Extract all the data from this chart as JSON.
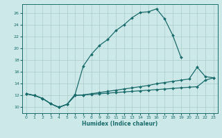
{
  "xlabel": "Humidex (Indice chaleur)",
  "bg_color": "#cce8e8",
  "grid_color": "#aacccc",
  "line_color": "#1a6b6b",
  "xlim": [
    -0.5,
    23.5
  ],
  "ylim": [
    9.0,
    27.5
  ],
  "xticks": [
    0,
    1,
    2,
    3,
    4,
    5,
    6,
    7,
    8,
    9,
    10,
    11,
    12,
    13,
    14,
    15,
    16,
    17,
    18,
    19,
    20,
    21,
    22,
    23
  ],
  "yticks": [
    10,
    12,
    14,
    16,
    18,
    20,
    22,
    24,
    26
  ],
  "series": [
    {
      "x": [
        0,
        1,
        2,
        3,
        4,
        5,
        6,
        7,
        8,
        9,
        10,
        11,
        12,
        13,
        14,
        15,
        16,
        17,
        18,
        19
      ],
      "y": [
        12.3,
        12.0,
        11.5,
        10.6,
        10.0,
        10.5,
        12.2,
        17.0,
        19.0,
        20.5,
        21.5,
        23.0,
        24.0,
        25.2,
        26.1,
        26.2,
        26.7,
        25.0,
        22.2,
        18.5
      ]
    },
    {
      "x": [
        0,
        1,
        2,
        3,
        4,
        5,
        6,
        7,
        8,
        9,
        10,
        11,
        12,
        13,
        14,
        15,
        16,
        17,
        18,
        19,
        20,
        21,
        22,
        23
      ],
      "y": [
        12.3,
        12.0,
        11.5,
        10.6,
        10.0,
        10.5,
        12.0,
        12.1,
        12.3,
        12.5,
        12.7,
        12.9,
        13.1,
        13.3,
        13.5,
        13.7,
        14.0,
        14.2,
        14.4,
        14.6,
        14.8,
        16.8,
        15.2,
        15.0
      ]
    },
    {
      "x": [
        0,
        1,
        2,
        3,
        4,
        5,
        6,
        7,
        8,
        9,
        10,
        11,
        12,
        13,
        14,
        15,
        16,
        17,
        18,
        19,
        20,
        21,
        22,
        23
      ],
      "y": [
        12.3,
        12.0,
        11.5,
        10.6,
        10.0,
        10.5,
        12.0,
        12.1,
        12.2,
        12.3,
        12.4,
        12.5,
        12.6,
        12.7,
        12.8,
        12.9,
        13.0,
        13.1,
        13.2,
        13.3,
        13.4,
        13.5,
        14.6,
        15.0
      ]
    }
  ]
}
